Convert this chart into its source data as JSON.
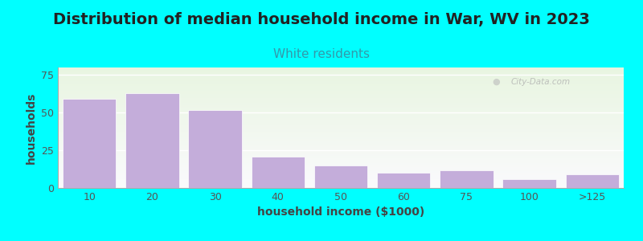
{
  "title": "Distribution of median household income in War, WV in 2023",
  "subtitle": "White residents",
  "xlabel": "household income ($1000)",
  "ylabel": "households",
  "bar_labels": [
    "10",
    "20",
    "30",
    "40",
    "50",
    "60",
    "75",
    "100",
    ">125"
  ],
  "bar_values": [
    59,
    63,
    52,
    21,
    15,
    10,
    12,
    6,
    9
  ],
  "bar_color": "#C4ADDA",
  "bar_edge_color": "#ffffff",
  "background_color": "#00FFFF",
  "ylim": [
    0,
    80
  ],
  "yticks": [
    0,
    25,
    50,
    75
  ],
  "title_fontsize": 14,
  "subtitle_fontsize": 11,
  "subtitle_color": "#3399aa",
  "axis_label_fontsize": 10,
  "tick_fontsize": 9,
  "watermark": "City-Data.com",
  "plot_bg_green": [
    0.91,
    0.96,
    0.88
  ],
  "plot_bg_white": [
    0.98,
    0.98,
    0.99
  ]
}
